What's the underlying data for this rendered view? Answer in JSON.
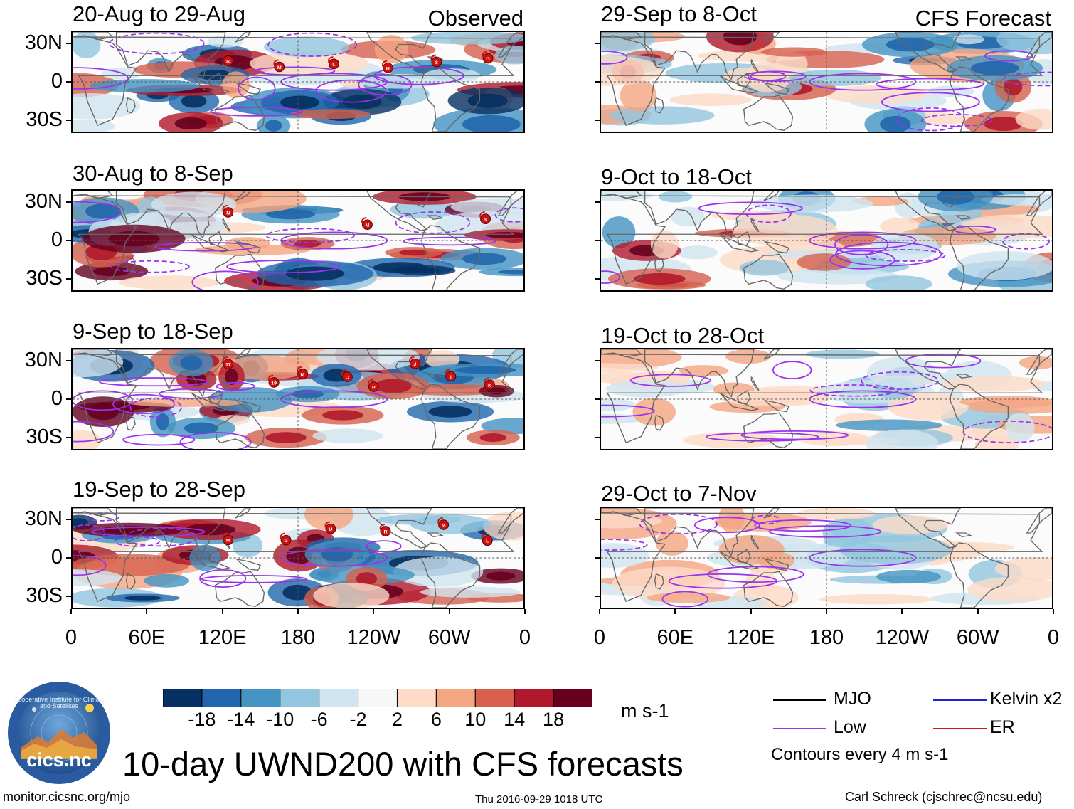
{
  "header": {
    "observed_label": "Observed",
    "forecast_label": "CFS Forecast"
  },
  "panels": {
    "observed": [
      {
        "title": "20-Aug to 29-Aug",
        "storms": [
          "14",
          "M",
          "L",
          "H",
          "8",
          "G"
        ]
      },
      {
        "title": "30-Aug to 8-Sep",
        "storms": [
          "N",
          "M",
          "N"
        ]
      },
      {
        "title": "9-Sep to 18-Sep",
        "storms": [
          "17",
          "19",
          "M",
          "O",
          "P",
          "J",
          "I",
          "K"
        ]
      },
      {
        "title": "19-Sep to 28-Sep",
        "storms": [
          "M",
          "G",
          "U",
          "R",
          "M",
          "L"
        ]
      }
    ],
    "forecast": [
      {
        "title": "29-Sep to 8-Oct"
      },
      {
        "title": "9-Oct to 18-Oct"
      },
      {
        "title": "19-Oct to 28-Oct"
      },
      {
        "title": "29-Oct to 7-Nov"
      }
    ]
  },
  "axes": {
    "lat_labels": [
      "30N",
      "0",
      "30S"
    ],
    "lon_labels": [
      "0",
      "60E",
      "120E",
      "180",
      "120W",
      "60W",
      "0"
    ]
  },
  "colorbar": {
    "tick_labels": [
      "-18",
      "-14",
      "-10",
      "-6",
      "-2",
      "2",
      "6",
      "10",
      "14",
      "18"
    ],
    "colors": [
      "#053061",
      "#2166ac",
      "#4393c3",
      "#92c5de",
      "#d1e5f0",
      "#f7f7f7",
      "#fddbc7",
      "#f4a582",
      "#d6604d",
      "#b2182b",
      "#67001f"
    ],
    "units": "m s-1"
  },
  "legend": {
    "items": [
      {
        "label": "MJO",
        "color": "#000000"
      },
      {
        "label": "Kelvin x2",
        "color": "#2222cc"
      },
      {
        "label": "Low",
        "color": "#9933ee"
      },
      {
        "label": "ER",
        "color": "#dd1111"
      }
    ],
    "contour_note": "Contours every 4 m s-1"
  },
  "main_title": "10-day UWND200 with CFS forecasts",
  "logo": {
    "name": "cics.nc",
    "ring_text": "Cooperative Institute for Climate and Satellites"
  },
  "footer": {
    "left": "monitor.cicsnc.org/mjo",
    "center": "Thu 2016-09-29 1018 UTC",
    "right": "Carl Schreck (cjschrec@ncsu.edu)"
  }
}
